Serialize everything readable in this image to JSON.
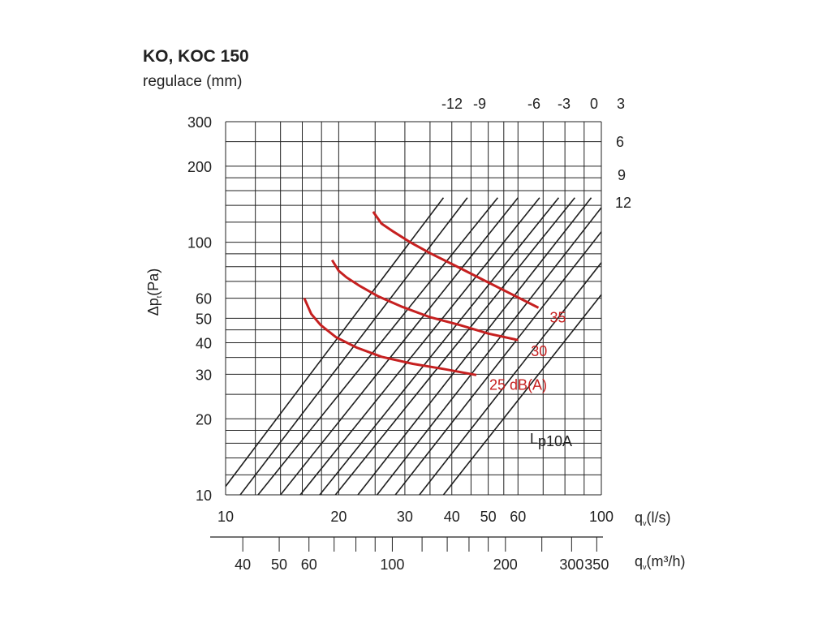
{
  "chart_data": {
    "type": "line",
    "title": "KO, KOC 150",
    "subtitle": "regulace (mm)",
    "xlabel": "q",
    "xlabel_sub": "v",
    "xlabel_unit": "(l/s)",
    "x2label": "q",
    "x2label_sub": "v",
    "x2label_unit": "(m³/h)",
    "ylabel": "Δp",
    "ylabel_sub": "t",
    "ylabel_unit": "(Pa)",
    "xscale": "log",
    "yscale": "log",
    "xlim": [
      10,
      100
    ],
    "ylim": [
      10,
      300
    ],
    "grid": true,
    "x_ticks": [
      10,
      20,
      30,
      40,
      50,
      60,
      100
    ],
    "x_ticklabels": [
      "10",
      "20",
      "30",
      "40",
      "50",
      "60",
      "100"
    ],
    "y_ticks": [
      10,
      20,
      30,
      40,
      50,
      60,
      100,
      200,
      300
    ],
    "y_ticklabels": [
      "10",
      "20",
      "30",
      "40",
      "50",
      "60",
      "100",
      "200",
      "300"
    ],
    "x2_ticks": [
      40,
      50,
      60,
      100,
      200,
      300,
      350
    ],
    "x2_ticklabels": [
      "40",
      "50",
      "60",
      "100",
      "200",
      "300",
      "350"
    ],
    "regulation_lines": [
      {
        "label": "-12",
        "points": [
          [
            10,
            10.8
          ],
          [
            38,
            150
          ]
        ]
      },
      {
        "label": "-9",
        "points": [
          [
            10,
            8.4
          ],
          [
            44,
            150
          ]
        ]
      },
      {
        "label": "",
        "points": [
          [
            12.2,
            10
          ],
          [
            53,
            150
          ]
        ]
      },
      {
        "label": "-6",
        "points": [
          [
            14,
            10
          ],
          [
            60,
            150
          ]
        ]
      },
      {
        "label": "",
        "points": [
          [
            15.8,
            10
          ],
          [
            68.5,
            150
          ]
        ]
      },
      {
        "label": "-3",
        "points": [
          [
            17.8,
            10
          ],
          [
            77,
            150
          ]
        ]
      },
      {
        "label": "",
        "points": [
          [
            19.6,
            10
          ],
          [
            85,
            150
          ]
        ]
      },
      {
        "label": "0",
        "points": [
          [
            22.5,
            10
          ],
          [
            94,
            150
          ]
        ]
      },
      {
        "label": "3",
        "points": [
          [
            25.3,
            10
          ],
          [
            100,
            137
          ]
        ]
      },
      {
        "label": "6",
        "points": [
          [
            28.3,
            10
          ],
          [
            100,
            110
          ]
        ]
      },
      {
        "label": "9",
        "points": [
          [
            32.8,
            10
          ],
          [
            100,
            83
          ]
        ]
      },
      {
        "label": "12",
        "points": [
          [
            38,
            10
          ],
          [
            100,
            62
          ]
        ]
      }
    ],
    "regulation_labels": [
      "-12",
      "-9",
      "-6",
      "-3",
      "0",
      "3",
      "6",
      "9",
      "12"
    ],
    "series": [
      {
        "name": "25 dB(A)",
        "points": [
          [
            16.2,
            60
          ],
          [
            16.9,
            52
          ],
          [
            17.9,
            47
          ],
          [
            19.7,
            42
          ],
          [
            22.3,
            38.3
          ],
          [
            26,
            35.2
          ],
          [
            31.5,
            33
          ],
          [
            38,
            31.5
          ],
          [
            46.5,
            29.8
          ]
        ]
      },
      {
        "name": "30",
        "points": [
          [
            19.2,
            85
          ],
          [
            20,
            77
          ],
          [
            21,
            72.5
          ],
          [
            22.8,
            67
          ],
          [
            25.5,
            61
          ],
          [
            29.5,
            55.5
          ],
          [
            35,
            50.5
          ],
          [
            42,
            47
          ],
          [
            50,
            43.5
          ],
          [
            60,
            41
          ]
        ]
      },
      {
        "name": "35",
        "points": [
          [
            24.7,
            132
          ],
          [
            26,
            118.5
          ],
          [
            28,
            110
          ],
          [
            31,
            100
          ],
          [
            35,
            90.5
          ],
          [
            41,
            80.5
          ],
          [
            48,
            71.5
          ],
          [
            58,
            62
          ],
          [
            68,
            55
          ]
        ]
      }
    ],
    "annotation": "L",
    "annotation_sub": "p10A",
    "colors": {
      "curves": "#c62020",
      "lines": "#1e1e1e",
      "grid": "#222222"
    }
  }
}
